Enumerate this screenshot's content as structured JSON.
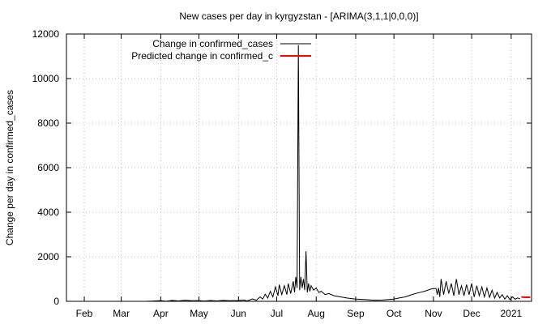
{
  "chart_data": {
    "type": "line",
    "title": "New cases per day in kyrgyzstan -  [ARIMA(3,1,1|0,0,0)]",
    "xlabel": "",
    "ylabel": "Change per day in confirmed_cases",
    "ylim": [
      0,
      12000
    ],
    "xlim": [
      "2020-01-18",
      "2021-01-17"
    ],
    "yticks": [
      0,
      2000,
      4000,
      6000,
      8000,
      10000,
      12000
    ],
    "xticks": [
      {
        "label": "Feb",
        "date": "2020-02-01"
      },
      {
        "label": "Mar",
        "date": "2020-03-01"
      },
      {
        "label": "Apr",
        "date": "2020-04-01"
      },
      {
        "label": "May",
        "date": "2020-05-01"
      },
      {
        "label": "Jun",
        "date": "2020-06-01"
      },
      {
        "label": "Jul",
        "date": "2020-07-01"
      },
      {
        "label": "Aug",
        "date": "2020-08-01"
      },
      {
        "label": "Sep",
        "date": "2020-09-01"
      },
      {
        "label": "Oct",
        "date": "2020-10-01"
      },
      {
        "label": "Nov",
        "date": "2020-11-01"
      },
      {
        "label": "Dec",
        "date": "2020-12-01"
      },
      {
        "label": "2021",
        "date": "2021-01-01"
      }
    ],
    "grid": true,
    "legend_position": "top-right",
    "series": [
      {
        "name": "Change in confirmed_cases",
        "color": "#000000",
        "points": [
          [
            "2020-03-20",
            0
          ],
          [
            "2020-03-25",
            10
          ],
          [
            "2020-04-01",
            30
          ],
          [
            "2020-04-05",
            5
          ],
          [
            "2020-04-10",
            40
          ],
          [
            "2020-04-15",
            20
          ],
          [
            "2020-04-20",
            50
          ],
          [
            "2020-04-25",
            25
          ],
          [
            "2020-05-01",
            30
          ],
          [
            "2020-05-05",
            15
          ],
          [
            "2020-05-10",
            35
          ],
          [
            "2020-05-15",
            20
          ],
          [
            "2020-05-20",
            40
          ],
          [
            "2020-05-25",
            25
          ],
          [
            "2020-06-01",
            35
          ],
          [
            "2020-06-05",
            60
          ],
          [
            "2020-06-08",
            20
          ],
          [
            "2020-06-12",
            110
          ],
          [
            "2020-06-15",
            50
          ],
          [
            "2020-06-18",
            200
          ],
          [
            "2020-06-20",
            100
          ],
          [
            "2020-06-22",
            320
          ],
          [
            "2020-06-24",
            150
          ],
          [
            "2020-06-26",
            450
          ],
          [
            "2020-06-28",
            200
          ],
          [
            "2020-06-30",
            650
          ],
          [
            "2020-07-02",
            250
          ],
          [
            "2020-07-03",
            750
          ],
          [
            "2020-07-05",
            300
          ],
          [
            "2020-07-07",
            700
          ],
          [
            "2020-07-09",
            300
          ],
          [
            "2020-07-10",
            800
          ],
          [
            "2020-07-12",
            350
          ],
          [
            "2020-07-14",
            900
          ],
          [
            "2020-07-15",
            400
          ],
          [
            "2020-07-16",
            1100
          ],
          [
            "2020-07-17",
            600
          ],
          [
            "2020-07-18",
            11500
          ],
          [
            "2020-07-19",
            500
          ],
          [
            "2020-07-20",
            1100
          ],
          [
            "2020-07-21",
            600
          ],
          [
            "2020-07-22",
            1000
          ],
          [
            "2020-07-23",
            500
          ],
          [
            "2020-07-24",
            2250
          ],
          [
            "2020-07-25",
            400
          ],
          [
            "2020-07-26",
            800
          ],
          [
            "2020-07-27",
            450
          ],
          [
            "2020-07-28",
            700
          ],
          [
            "2020-07-30",
            500
          ],
          [
            "2020-08-01",
            600
          ],
          [
            "2020-08-03",
            400
          ],
          [
            "2020-08-05",
            450
          ],
          [
            "2020-08-08",
            300
          ],
          [
            "2020-08-11",
            350
          ],
          [
            "2020-08-15",
            250
          ],
          [
            "2020-08-20",
            200
          ],
          [
            "2020-08-25",
            150
          ],
          [
            "2020-09-01",
            100
          ],
          [
            "2020-09-08",
            80
          ],
          [
            "2020-09-15",
            50
          ],
          [
            "2020-09-22",
            60
          ],
          [
            "2020-10-01",
            100
          ],
          [
            "2020-10-05",
            150
          ],
          [
            "2020-10-10",
            200
          ],
          [
            "2020-10-15",
            300
          ],
          [
            "2020-10-20",
            380
          ],
          [
            "2020-10-25",
            450
          ],
          [
            "2020-10-30",
            550
          ],
          [
            "2020-11-03",
            580
          ],
          [
            "2020-11-04",
            300
          ],
          [
            "2020-11-05",
            600
          ],
          [
            "2020-11-06",
            200
          ],
          [
            "2020-11-07",
            1000
          ],
          [
            "2020-11-09",
            300
          ],
          [
            "2020-11-11",
            900
          ],
          [
            "2020-11-13",
            350
          ],
          [
            "2020-11-15",
            800
          ],
          [
            "2020-11-17",
            250
          ],
          [
            "2020-11-19",
            1000
          ],
          [
            "2020-11-21",
            300
          ],
          [
            "2020-11-23",
            700
          ],
          [
            "2020-11-25",
            250
          ],
          [
            "2020-11-27",
            750
          ],
          [
            "2020-11-29",
            300
          ],
          [
            "2020-12-01",
            800
          ],
          [
            "2020-12-03",
            200
          ],
          [
            "2020-12-05",
            700
          ],
          [
            "2020-12-07",
            250
          ],
          [
            "2020-12-09",
            650
          ],
          [
            "2020-12-11",
            200
          ],
          [
            "2020-12-13",
            600
          ],
          [
            "2020-12-15",
            180
          ],
          [
            "2020-12-17",
            500
          ],
          [
            "2020-12-19",
            150
          ],
          [
            "2020-12-21",
            400
          ],
          [
            "2020-12-23",
            150
          ],
          [
            "2020-12-25",
            300
          ],
          [
            "2020-12-27",
            100
          ],
          [
            "2020-12-29",
            250
          ],
          [
            "2020-12-31",
            80
          ],
          [
            "2021-01-02",
            200
          ],
          [
            "2021-01-04",
            100
          ],
          [
            "2021-01-06",
            150
          ],
          [
            "2021-01-08",
            120
          ]
        ]
      },
      {
        "name": "Predicted change in confirmed_c",
        "color": "#ff0000",
        "points": [
          [
            "2021-01-09",
            200
          ],
          [
            "2021-01-10",
            190
          ],
          [
            "2021-01-12",
            180
          ],
          [
            "2021-01-14",
            185
          ],
          [
            "2021-01-16",
            180
          ]
        ]
      }
    ]
  }
}
